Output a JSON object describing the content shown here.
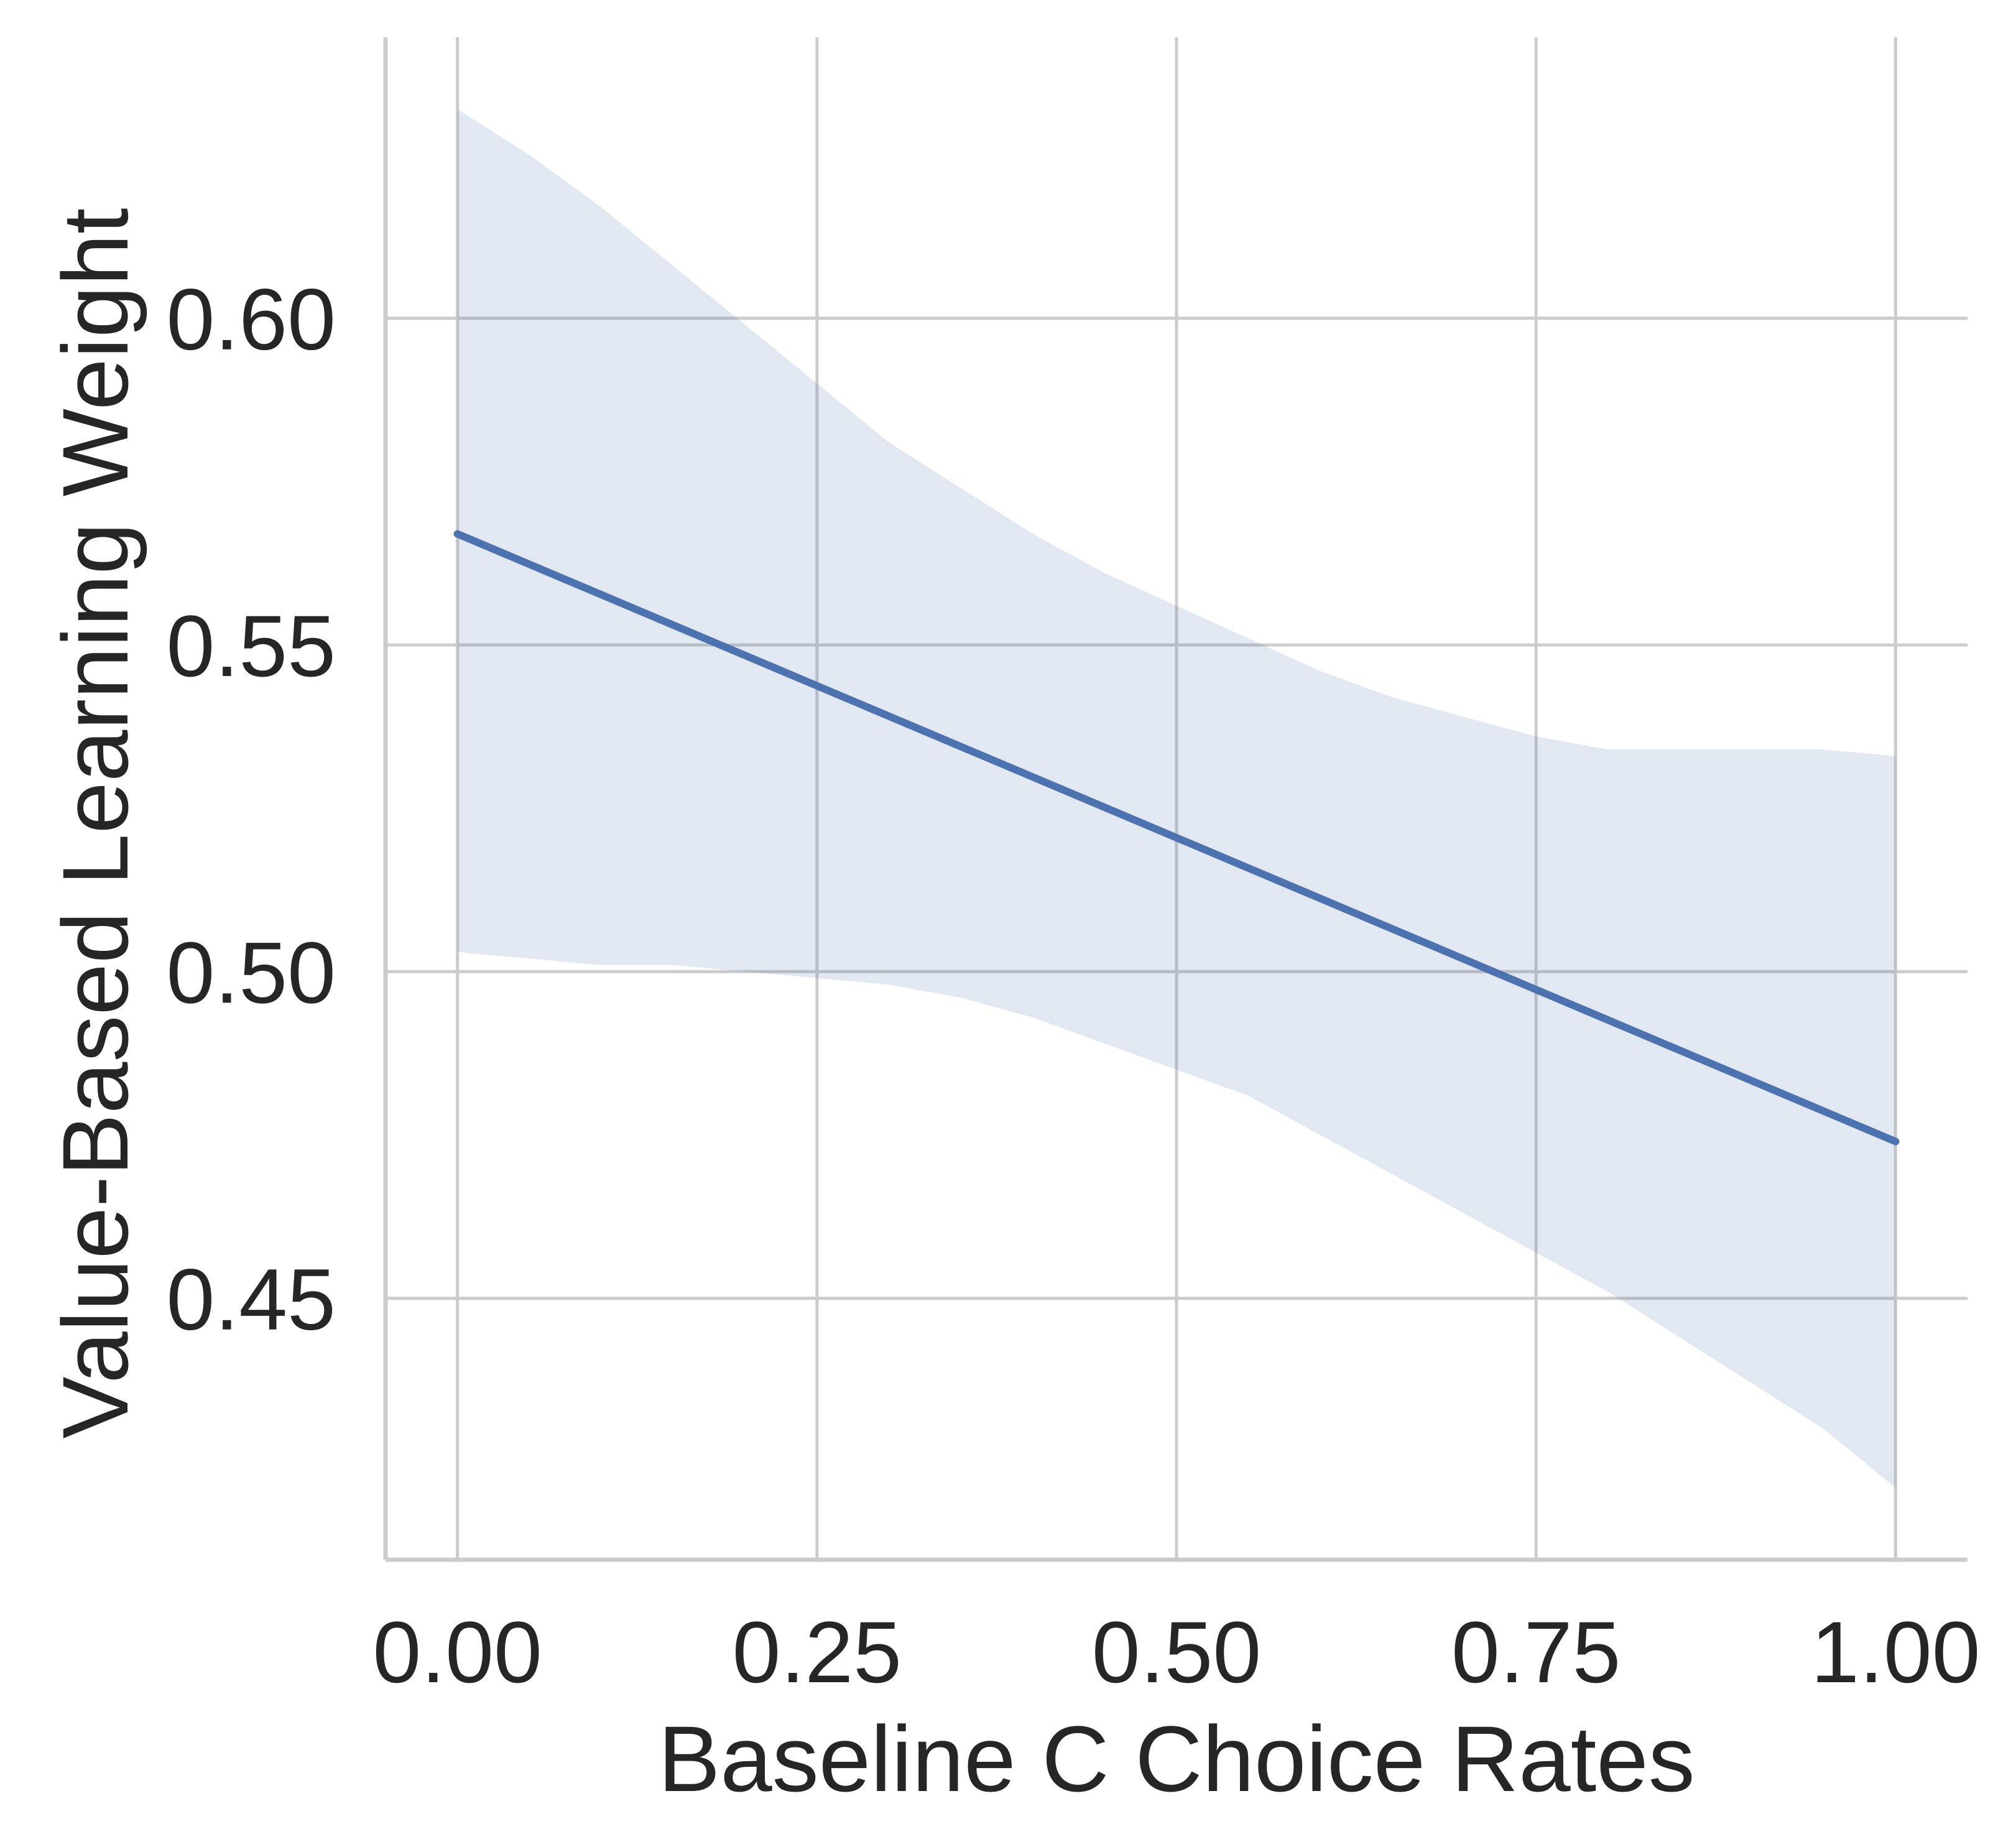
{
  "chart_data": {
    "type": "line",
    "title": "",
    "xlabel": "Baseline C Choice Rates",
    "ylabel": "Value-Based Learning Weight",
    "xlim": [
      -0.05,
      1.05
    ],
    "ylim": [
      0.41,
      0.643
    ],
    "grid": true,
    "x_ticks": [
      0.0,
      0.25,
      0.5,
      0.75,
      1.0
    ],
    "x_tick_labels": [
      "0.00",
      "0.25",
      "0.50",
      "0.75",
      "1.00"
    ],
    "y_ticks": [
      0.45,
      0.5,
      0.55,
      0.6
    ],
    "y_tick_labels": [
      "0.45",
      "0.50",
      "0.55",
      "0.60"
    ],
    "series": [
      {
        "type": "line",
        "color": "#4c72b0",
        "x": [
          0.0,
          1.0
        ],
        "y": [
          0.567,
          0.474
        ]
      }
    ],
    "confidence_band": {
      "color": "#4c72b0",
      "opacity": 0.16,
      "x": [
        0.0,
        0.05,
        0.1,
        0.15,
        0.2,
        0.25,
        0.3,
        0.35,
        0.4,
        0.45,
        0.5,
        0.55,
        0.6,
        0.65,
        0.7,
        0.75,
        0.8,
        0.85,
        0.9,
        0.95,
        1.0
      ],
      "upper": [
        0.632,
        0.625,
        0.617,
        0.608,
        0.599,
        0.59,
        0.581,
        0.574,
        0.567,
        0.561,
        0.556,
        0.551,
        0.546,
        0.542,
        0.539,
        0.536,
        0.534,
        0.534,
        0.534,
        0.534,
        0.533
      ],
      "lower": [
        0.503,
        0.502,
        0.501,
        0.501,
        0.5,
        0.499,
        0.498,
        0.496,
        0.493,
        0.489,
        0.485,
        0.481,
        0.475,
        0.469,
        0.463,
        0.457,
        0.451,
        0.444,
        0.437,
        0.43,
        0.421
      ]
    }
  }
}
